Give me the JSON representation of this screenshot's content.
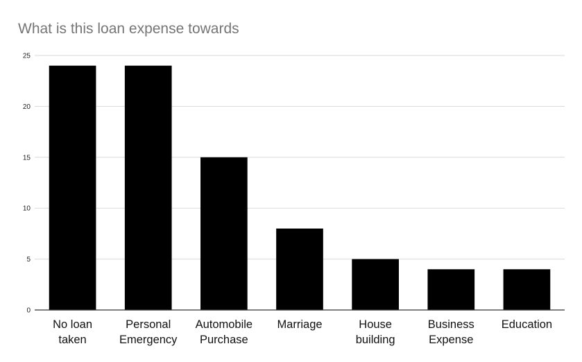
{
  "chart_data": {
    "type": "bar",
    "title": "What is this loan expense towards",
    "xlabel": "",
    "ylabel": "",
    "categories": [
      [
        "No loan",
        "taken"
      ],
      [
        "Personal",
        "Emergency"
      ],
      [
        "Automobile",
        "Purchase"
      ],
      [
        "Marriage"
      ],
      [
        "House",
        "building"
      ],
      [
        "Business",
        "Expense"
      ],
      [
        "Education"
      ]
    ],
    "values": [
      24,
      24,
      15,
      8,
      5,
      4,
      4
    ],
    "ylim": [
      0,
      25
    ],
    "yticks": [
      0,
      5,
      10,
      15,
      20,
      25
    ],
    "grid": true,
    "legend": "none",
    "colors": {
      "bar": "#000000",
      "grid": "#d9d9d9",
      "axis": "#333333"
    }
  }
}
